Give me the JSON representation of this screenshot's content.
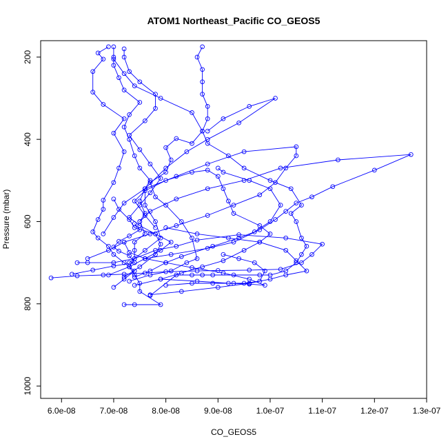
{
  "chart_data": {
    "type": "line",
    "title": "ATOM1 Northeast_Pacific CO_GEOS5",
    "xlabel": "CO_GEOS5",
    "ylabel": "Pressure (mbar)",
    "xlim": [
      5.6e-08,
      1.3e-07
    ],
    "ylim": [
      1030,
      160
    ],
    "y_inverted": true,
    "x_ticks": [
      6e-08,
      7e-08,
      8e-08,
      9e-08,
      1e-07,
      1.1e-07,
      1.2e-07,
      1.3e-07
    ],
    "x_tick_labels": [
      "6.0e-08",
      "7.0e-08",
      "8.0e-08",
      "9.0e-08",
      "1.0e-07",
      "1.1e-07",
      "1.2e-07",
      "1.3e-07"
    ],
    "y_ticks": [
      200,
      400,
      600,
      800,
      1000
    ],
    "y_tick_labels": [
      "200",
      "400",
      "600",
      "800",
      "1000"
    ],
    "grid": false,
    "legend": "none",
    "series_color": "#0000ff",
    "marker": "open-circle",
    "series": [
      {
        "points": [
          [
            7.2e-08,
            802
          ],
          [
            7.4e-08,
            802
          ],
          [
            7.9e-08,
            802
          ],
          [
            7.5e-08,
            770
          ],
          [
            7.5e-08,
            750
          ],
          [
            7.4e-08,
            730
          ],
          [
            7.3e-08,
            710
          ],
          [
            7.4e-08,
            690
          ],
          [
            7.4e-08,
            670
          ],
          [
            7.4e-08,
            650
          ],
          [
            7.6e-08,
            630
          ],
          [
            7.5e-08,
            600
          ],
          [
            7.6e-08,
            580
          ],
          [
            7.5e-08,
            550
          ],
          [
            7.6e-08,
            520
          ],
          [
            7.7e-08,
            500
          ],
          [
            7.5e-08,
            470
          ],
          [
            7.4e-08,
            440
          ],
          [
            7.3e-08,
            400
          ],
          [
            7.2e-08,
            370
          ],
          [
            7.3e-08,
            340
          ],
          [
            7.5e-08,
            310
          ],
          [
            7.2e-08,
            280
          ],
          [
            7.1e-08,
            250
          ],
          [
            7e-08,
            220
          ],
          [
            7e-08,
            200
          ],
          [
            7e-08,
            175
          ]
        ]
      },
      {
        "points": [
          [
            7.7e-08,
            780
          ],
          [
            8.2e-08,
            730
          ],
          [
            8.5e-08,
            730
          ],
          [
            8.7e-08,
            730
          ],
          [
            8.9e-08,
            730
          ],
          [
            9.3e-08,
            730
          ],
          [
            9.8e-08,
            730
          ],
          [
            1e-07,
            730
          ],
          [
            1.03e-07,
            720
          ],
          [
            1.05e-07,
            700
          ],
          [
            1.06e-07,
            680
          ],
          [
            1.07e-07,
            660
          ],
          [
            1.06e-07,
            640
          ],
          [
            1.05e-07,
            600
          ],
          [
            1.04e-07,
            580
          ],
          [
            1.06e-07,
            560
          ],
          [
            1.04e-07,
            520
          ],
          [
            1e-07,
            500
          ],
          [
            9.5e-08,
            470
          ],
          [
            9.2e-08,
            440
          ],
          [
            8.8e-08,
            410
          ],
          [
            8.7e-08,
            380
          ],
          [
            8.8e-08,
            350
          ],
          [
            8.8e-08,
            320
          ],
          [
            8.7e-08,
            290
          ],
          [
            8.7e-08,
            260
          ],
          [
            8.7e-08,
            230
          ],
          [
            8.6e-08,
            200
          ],
          [
            8.7e-08,
            175
          ]
        ]
      },
      {
        "points": [
          [
            5.8e-08,
            737
          ],
          [
            6.3e-08,
            732
          ],
          [
            6.8e-08,
            730
          ],
          [
            7.2e-08,
            728
          ],
          [
            7.6e-08,
            725
          ],
          [
            8e-08,
            722
          ],
          [
            8.6e-08,
            720
          ],
          [
            9e-08,
            719
          ],
          [
            9.6e-08,
            718
          ],
          [
            1.02e-07,
            716
          ],
          [
            1.06e-07,
            700
          ],
          [
            1.08e-07,
            680
          ],
          [
            1.1e-07,
            655
          ],
          [
            1.03e-07,
            640
          ],
          [
            9.4e-08,
            632
          ],
          [
            8.6e-08,
            645
          ],
          [
            8.2e-08,
            660
          ],
          [
            7.8e-08,
            670
          ],
          [
            7.4e-08,
            690
          ],
          [
            7e-08,
            700
          ],
          [
            6.5e-08,
            700
          ],
          [
            6.3e-08,
            700
          ]
        ]
      },
      {
        "points": [
          [
            7e-08,
            760
          ],
          [
            7.2e-08,
            740
          ],
          [
            7.4e-08,
            720
          ],
          [
            7.2e-08,
            700
          ],
          [
            7e-08,
            680
          ],
          [
            6.9e-08,
            660
          ],
          [
            6.7e-08,
            640
          ],
          [
            6.6e-08,
            625
          ],
          [
            6.7e-08,
            595
          ],
          [
            6.8e-08,
            570
          ],
          [
            6.8e-08,
            548
          ],
          [
            7e-08,
            505
          ],
          [
            7.1e-08,
            470
          ],
          [
            7.2e-08,
            430
          ],
          [
            7e-08,
            385
          ],
          [
            7.2e-08,
            350
          ],
          [
            6.8e-08,
            315
          ],
          [
            6.6e-08,
            285
          ],
          [
            6.6e-08,
            235
          ],
          [
            6.8e-08,
            205
          ],
          [
            6.7e-08,
            190
          ],
          [
            6.9e-08,
            175
          ]
        ]
      },
      {
        "points": [
          [
            7.4e-08,
            755
          ],
          [
            7.9e-08,
            740
          ],
          [
            8.3e-08,
            725
          ],
          [
            8.7e-08,
            710
          ],
          [
            9.1e-08,
            695
          ],
          [
            9.5e-08,
            670
          ],
          [
            9.8e-08,
            650
          ],
          [
            1e-07,
            630
          ],
          [
            9.8e-08,
            610
          ],
          [
            9.3e-08,
            580
          ],
          [
            9.2e-08,
            550
          ],
          [
            9.1e-08,
            520
          ],
          [
            9e-08,
            490
          ],
          [
            8.8e-08,
            475
          ],
          [
            8.5e-08,
            480
          ],
          [
            8e-08,
            500
          ],
          [
            7.6e-08,
            525
          ],
          [
            7.4e-08,
            550
          ],
          [
            7.6e-08,
            585
          ],
          [
            7.8e-08,
            615
          ]
        ]
      },
      {
        "points": [
          [
            7.3e-08,
            745
          ],
          [
            7.7e-08,
            730
          ],
          [
            8.1e-08,
            720
          ],
          [
            8.4e-08,
            700
          ],
          [
            8.6e-08,
            690
          ],
          [
            8.5e-08,
            640
          ],
          [
            8.3e-08,
            600
          ],
          [
            8e-08,
            560
          ],
          [
            7.8e-08,
            540
          ],
          [
            7.7e-08,
            505
          ],
          [
            8e-08,
            480
          ],
          [
            8.1e-08,
            450
          ],
          [
            8e-08,
            420
          ],
          [
            8.2e-08,
            398
          ],
          [
            8.5e-08,
            410
          ],
          [
            8.7e-08,
            380
          ],
          [
            8.5e-08,
            335
          ],
          [
            7.9e-08,
            300
          ],
          [
            7.4e-08,
            270
          ],
          [
            7.2e-08,
            240
          ],
          [
            7e-08,
            205
          ]
        ]
      },
      {
        "points": [
          [
            7.6e-08,
            690
          ],
          [
            8.1e-08,
            680
          ],
          [
            8.8e-08,
            665
          ],
          [
            9.3e-08,
            650
          ],
          [
            9.8e-08,
            620
          ],
          [
            1.01e-07,
            595
          ],
          [
            1.03e-07,
            575
          ],
          [
            1.05e-07,
            555
          ],
          [
            1.08e-07,
            540
          ],
          [
            1.12e-07,
            515
          ],
          [
            1.2e-07,
            475
          ],
          [
            1.27e-07,
            437
          ],
          [
            1.13e-07,
            450
          ],
          [
            1.02e-07,
            470
          ],
          [
            9.5e-08,
            500
          ],
          [
            8.8e-08,
            520
          ],
          [
            8.2e-08,
            545
          ],
          [
            7.7e-08,
            575
          ],
          [
            7.5e-08,
            600
          ]
        ]
      },
      {
        "points": [
          [
            6.5e-08,
            690
          ],
          [
            6.9e-08,
            670
          ],
          [
            7.2e-08,
            650
          ],
          [
            7.7e-08,
            630
          ],
          [
            8.2e-08,
            610
          ],
          [
            8.8e-08,
            585
          ],
          [
            9.3e-08,
            560
          ],
          [
            9.8e-08,
            535
          ],
          [
            1.01e-07,
            505
          ],
          [
            1.03e-07,
            470
          ],
          [
            1.05e-07,
            440
          ],
          [
            1.05e-07,
            418
          ],
          [
            9.5e-08,
            430
          ],
          [
            8.8e-08,
            460
          ],
          [
            8.2e-08,
            490
          ],
          [
            7.6e-08,
            520
          ],
          [
            7.2e-08,
            555
          ],
          [
            7e-08,
            590
          ],
          [
            6.8e-08,
            630
          ]
        ]
      },
      {
        "points": [
          [
            7.2e-08,
            735
          ],
          [
            7.5e-08,
            710
          ],
          [
            7.8e-08,
            680
          ],
          [
            7.9e-08,
            655
          ],
          [
            7.8e-08,
            630
          ],
          [
            7.5e-08,
            610
          ],
          [
            7.3e-08,
            590
          ],
          [
            7.5e-08,
            560
          ],
          [
            7.7e-08,
            530
          ],
          [
            7.9e-08,
            495
          ],
          [
            7.7e-08,
            460
          ],
          [
            7.5e-08,
            425
          ],
          [
            7.3e-08,
            390
          ],
          [
            7.6e-08,
            355
          ],
          [
            7.8e-08,
            325
          ],
          [
            7.8e-08,
            290
          ],
          [
            7.5e-08,
            260
          ],
          [
            7.3e-08,
            235
          ],
          [
            7.2e-08,
            200
          ],
          [
            7.2e-08,
            180
          ]
        ]
      },
      {
        "points": [
          [
            7.7e-08,
            778
          ],
          [
            8.3e-08,
            770
          ],
          [
            9e-08,
            760
          ],
          [
            9.6e-08,
            750
          ],
          [
            1e-07,
            740
          ],
          [
            1.03e-07,
            730
          ],
          [
            1.07e-07,
            720
          ],
          [
            1.05e-07,
            695
          ],
          [
            1.03e-07,
            670
          ],
          [
            9.8e-08,
            650
          ],
          [
            9.2e-08,
            640
          ],
          [
            8.6e-08,
            630
          ],
          [
            8e-08,
            615
          ]
        ]
      },
      {
        "points": [
          [
            6.9e-08,
            730
          ],
          [
            7.3e-08,
            710
          ],
          [
            7.6e-08,
            690
          ],
          [
            7.9e-08,
            670
          ],
          [
            8.1e-08,
            650
          ],
          [
            7.8e-08,
            630
          ],
          [
            7.4e-08,
            615
          ],
          [
            7.3e-08,
            595
          ],
          [
            7.1e-08,
            570
          ],
          [
            7e-08,
            545
          ]
        ]
      },
      {
        "points": [
          [
            7.9e-08,
            740
          ],
          [
            8.6e-08,
            745
          ],
          [
            9.2e-08,
            750
          ],
          [
            9.6e-08,
            752
          ],
          [
            9.9e-08,
            755
          ],
          [
            9.6e-08,
            740
          ],
          [
            9.1e-08,
            725
          ],
          [
            8.5e-08,
            712
          ],
          [
            8e-08,
            700
          ],
          [
            7.6e-08,
            690
          ],
          [
            7.3e-08,
            675
          ],
          [
            7.2e-08,
            650
          ]
        ]
      },
      {
        "points": [
          [
            7.4e-08,
            735
          ],
          [
            7.7e-08,
            720
          ],
          [
            8e-08,
            700
          ],
          [
            8.3e-08,
            685
          ],
          [
            8.9e-08,
            660
          ],
          [
            9.4e-08,
            640
          ],
          [
            9.7e-08,
            625
          ],
          [
            1e-07,
            600
          ],
          [
            1.02e-07,
            560
          ],
          [
            1e-07,
            520
          ],
          [
            9.6e-08,
            500
          ],
          [
            9.1e-08,
            480
          ],
          [
            9e-08,
            470
          ]
        ]
      },
      {
        "points": [
          [
            7.3e-08,
            700
          ],
          [
            7.6e-08,
            670
          ],
          [
            7.9e-08,
            640
          ],
          [
            7.8e-08,
            600
          ],
          [
            7.6e-08,
            560
          ],
          [
            7.6e-08,
            520
          ],
          [
            8e-08,
            470
          ],
          [
            8.4e-08,
            430
          ],
          [
            8.8e-08,
            400
          ],
          [
            9.4e-08,
            360
          ],
          [
            1.01e-07,
            300
          ],
          [
            9.6e-08,
            320
          ],
          [
            9.1e-08,
            350
          ],
          [
            8.8e-08,
            380
          ]
        ]
      },
      {
        "points": [
          [
            8e-08,
            755
          ],
          [
            8.5e-08,
            750
          ],
          [
            8.9e-08,
            750
          ],
          [
            9.3e-08,
            750
          ],
          [
            9.5e-08,
            750
          ],
          [
            9.8e-08,
            745
          ],
          [
            9.9e-08,
            720
          ],
          [
            9.7e-08,
            700
          ],
          [
            9.4e-08,
            690
          ],
          [
            9.1e-08,
            680
          ]
        ]
      },
      {
        "points": [
          [
            6.2e-08,
            728
          ],
          [
            6.6e-08,
            718
          ],
          [
            7e-08,
            708
          ],
          [
            7.4e-08,
            700
          ],
          [
            7.3e-08,
            683
          ],
          [
            7.1e-08,
            672
          ],
          [
            7e-08,
            662
          ],
          [
            7.1e-08,
            648
          ],
          [
            7.3e-08,
            635
          ],
          [
            7.5e-08,
            620
          ],
          [
            7.4e-08,
            605
          ]
        ]
      }
    ]
  }
}
